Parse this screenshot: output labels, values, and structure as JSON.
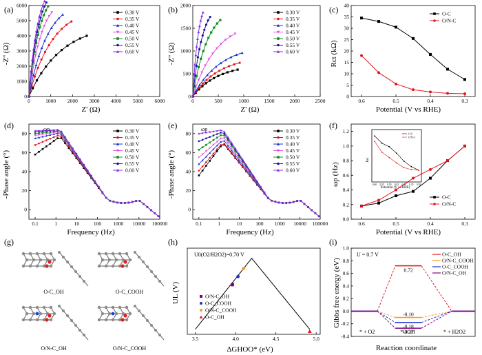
{
  "panels": {
    "a": {
      "label": "(a)",
      "xlabel": "Z' (Ω)",
      "ylabel": "-Z'' (Ω)"
    },
    "b": {
      "label": "(b)",
      "xlabel": "Z' (Ω)",
      "ylabel": "-Z'' (Ω)"
    },
    "c": {
      "label": "(c)",
      "xlabel": "Potential (V vs RHE)",
      "ylabel": "Rct (kΩ)"
    },
    "d": {
      "label": "(d)",
      "xlabel": "Frequency (Hz)",
      "ylabel": "-Phase angle (°)",
      "annotation": "ωp"
    },
    "e": {
      "label": "(e)",
      "xlabel": "Frequency (Hz)",
      "ylabel": "-Phase angle (°)",
      "annotation": "ωp"
    },
    "f": {
      "label": "(f)",
      "xlabel": "Potential (V vs RHE)",
      "ylabel": "ωp (Hz)",
      "inset_xlabel": "Potential (V vs RHE)",
      "inset_ylabel": "Rct"
    },
    "g": {
      "label": "(g)",
      "structures": [
        "O-C_OH",
        "O-C_COOH",
        "O/N-C_OH",
        "O/N-C_COOH"
      ]
    },
    "h": {
      "label": "(h)",
      "xlabel": "ΔGHOO* (eV)",
      "ylabel": "UL (V)",
      "annotation": "U0(O2/H2O2)=0.70 V"
    },
    "i": {
      "label": "(i)",
      "xlabel": "Reaction coordinate",
      "ylabel": "Gibbs free energy (eV)",
      "annotation": "U = 0.7 V",
      "states": [
        "* + O2",
        "*OOH",
        "* + H2O2"
      ]
    }
  },
  "colors": {
    "0.30 V": "#000000",
    "0.35 V": "#e8141c",
    "0.40 V": "#1a2fd6",
    "0.45 V": "#e84ce0",
    "0.50 V": "#148c1c",
    "0.55 V": "#1515a0",
    "0.60 V": "#8a2be2",
    "O-C": "#000000",
    "O/N-C": "#e8141c",
    "O-C_OH": "#e8141c",
    "O/N-C_COOH": "#ff9a1f",
    "O-C_COOH": "#1a2fd6",
    "O/N-C_OH": "#800080"
  },
  "chart_data": [
    {
      "panel": "a",
      "type": "scatter",
      "xlim": [
        0,
        6000
      ],
      "ylim": [
        0,
        6000
      ],
      "xticks": [
        0,
        1000,
        2000,
        3000,
        4000,
        5000,
        6000
      ],
      "yticks": [
        0,
        1000,
        2000,
        3000,
        4000,
        5000,
        6000
      ],
      "legend_position": "top-right",
      "series": [
        {
          "name": "0.30 V",
          "endpoint": [
            2650,
            4000
          ]
        },
        {
          "name": "0.35 V",
          "endpoint": [
            1950,
            4950
          ]
        },
        {
          "name": "0.40 V",
          "endpoint": [
            1550,
            5400
          ]
        },
        {
          "name": "0.45 V",
          "endpoint": [
            1050,
            5550
          ]
        },
        {
          "name": "0.50 V",
          "endpoint": [
            880,
            5950
          ]
        },
        {
          "name": "0.55 V",
          "endpoint": [
            800,
            6200
          ]
        },
        {
          "name": "0.60 V",
          "endpoint": [
            720,
            6300
          ]
        }
      ]
    },
    {
      "panel": "b",
      "type": "scatter",
      "xlim": [
        0,
        2500
      ],
      "ylim": [
        0,
        2000
      ],
      "xticks": [
        0,
        500,
        1000,
        1500,
        2000,
        2500
      ],
      "yticks": [
        0,
        500,
        1000,
        1500,
        2000
      ],
      "legend_position": "top-right",
      "series": [
        {
          "name": "0.30 V",
          "endpoint": [
            880,
            590
          ]
        },
        {
          "name": "0.35 V",
          "endpoint": [
            920,
            740
          ]
        },
        {
          "name": "0.40 V",
          "endpoint": [
            970,
            960
          ]
        },
        {
          "name": "0.45 V",
          "endpoint": [
            830,
            1380
          ]
        },
        {
          "name": "0.50 V",
          "endpoint": [
            540,
            1680
          ]
        },
        {
          "name": "0.55 V",
          "endpoint": [
            340,
            1750
          ]
        },
        {
          "name": "0.60 V",
          "endpoint": [
            200,
            1850
          ]
        }
      ]
    },
    {
      "panel": "c",
      "type": "line",
      "x": [
        0.6,
        0.55,
        0.5,
        0.45,
        0.4,
        0.35,
        0.3
      ],
      "xlim": [
        0.63,
        0.27
      ],
      "ylim": [
        0,
        40
      ],
      "xticks": [
        0.6,
        0.5,
        0.4,
        0.3
      ],
      "yticks": [
        0,
        5,
        10,
        15,
        20,
        25,
        30,
        35,
        40
      ],
      "legend_position": "top-right",
      "series": [
        {
          "name": "O-C",
          "values": [
            34.5,
            33,
            30.5,
            25.5,
            18.5,
            12,
            7.5
          ]
        },
        {
          "name": "O/N-C",
          "values": [
            18,
            10.5,
            5.5,
            3,
            2,
            1.4,
            1.2
          ]
        }
      ]
    },
    {
      "panel": "d",
      "type": "line",
      "xscale": "log",
      "xlim": [
        0.05,
        100000
      ],
      "ylim": [
        -10,
        90
      ],
      "xticks": [
        0.1,
        1,
        10,
        100,
        1000,
        10000,
        100000
      ],
      "xticklabels": [
        "0.1",
        "1",
        "10",
        "100",
        "1000",
        "10000",
        "100000"
      ],
      "yticks": [
        0,
        20,
        40,
        60,
        80
      ],
      "legend_position": "top-right",
      "series": [
        {
          "name": "0.30 V",
          "peak": 77,
          "low": 58
        },
        {
          "name": "0.35 V",
          "peak": 79,
          "low": 68
        },
        {
          "name": "0.40 V",
          "peak": 81,
          "low": 75
        },
        {
          "name": "0.45 V",
          "peak": 82,
          "low": 78
        },
        {
          "name": "0.50 V",
          "peak": 83,
          "low": 80
        },
        {
          "name": "0.55 V",
          "peak": 84,
          "low": 82
        },
        {
          "name": "0.60 V",
          "peak": 84,
          "low": 83
        }
      ]
    },
    {
      "panel": "e",
      "type": "line",
      "xscale": "log",
      "xlim": [
        0.05,
        100000
      ],
      "ylim": [
        -10,
        90
      ],
      "xticks": [
        0.1,
        1,
        10,
        100,
        1000,
        10000,
        100000
      ],
      "xticklabels": [
        "0.1",
        "1",
        "10",
        "100",
        "1000",
        "10000",
        "100000"
      ],
      "yticks": [
        0,
        20,
        40,
        60,
        80
      ],
      "legend_position": "top-right",
      "series": [
        {
          "name": "0.30 V",
          "peak": 70,
          "low": 36
        },
        {
          "name": "0.35 V",
          "peak": 71,
          "low": 41
        },
        {
          "name": "0.40 V",
          "peak": 74,
          "low": 48
        },
        {
          "name": "0.45 V",
          "peak": 77,
          "low": 55
        },
        {
          "name": "0.50 V",
          "peak": 80,
          "low": 63
        },
        {
          "name": "0.55 V",
          "peak": 82,
          "low": 72
        },
        {
          "name": "0.60 V",
          "peak": 84,
          "low": 80
        }
      ]
    },
    {
      "panel": "f",
      "type": "line",
      "x": [
        0.6,
        0.55,
        0.5,
        0.45,
        0.4,
        0.35,
        0.3
      ],
      "xlim": [
        0.63,
        0.27
      ],
      "ylim": [
        0,
        1.3
      ],
      "xticks": [
        0.6,
        0.5,
        0.4,
        0.3
      ],
      "yticks": [
        0.0,
        0.2,
        0.4,
        0.6,
        0.8,
        1.0,
        1.2
      ],
      "legend_position": "bottom-right",
      "series": [
        {
          "name": "O-C",
          "values": [
            0.18,
            0.22,
            0.32,
            0.38,
            0.56,
            0.8,
            1.0
          ]
        },
        {
          "name": "O/N-C",
          "values": [
            0.18,
            0.26,
            0.4,
            0.56,
            0.68,
            0.8,
            1.0
          ]
        }
      ],
      "inset": {
        "xticklabels": [
          "0.60",
          "0.55",
          "0.50",
          "0.45",
          "0.40",
          "0.35",
          "0.30"
        ],
        "series": [
          {
            "name": "O-C",
            "values": [
              1.2,
              1.0,
              0.9,
              0.72,
              0.5,
              0.35,
              0.25
            ]
          },
          {
            "name": "O/N-C",
            "values": [
              1.05,
              0.75,
              0.6,
              0.45,
              0.32,
              0.27,
              0.25
            ]
          }
        ]
      }
    },
    {
      "panel": "h",
      "type": "scatter",
      "xlim": [
        3.4,
        5.05
      ],
      "ylim": [
        -0.05,
        0.8
      ],
      "xticks": [
        3.5,
        4.0,
        4.5,
        5.0
      ],
      "legend_position": "bottom-left",
      "volcano": [
        [
          3.5,
          0.0
        ],
        [
          4.2,
          0.7
        ],
        [
          4.92,
          0.0
        ]
      ],
      "series": [
        {
          "name": "O/N-C_OH",
          "x": 3.96,
          "y": 0.44,
          "marker": "square"
        },
        {
          "name": "O-C_COOH",
          "x": 4.03,
          "y": 0.52,
          "marker": "circle"
        },
        {
          "name": "O/N-C_COOH",
          "x": 4.1,
          "y": 0.6,
          "marker": "circle"
        },
        {
          "name": "O-C_OH",
          "x": 4.92,
          "y": -0.02,
          "marker": "triangle"
        }
      ]
    },
    {
      "panel": "i",
      "type": "line",
      "ylim": [
        -0.4,
        1.0
      ],
      "yticks": [
        -0.4,
        -0.2,
        0.0,
        0.2,
        0.4,
        0.6,
        0.8,
        1.0
      ],
      "legend_position": "top-right",
      "series": [
        {
          "name": "O-C_OH",
          "values": [
            0,
            0.72,
            0
          ],
          "label": "0.72"
        },
        {
          "name": "O/N-C_COOH",
          "values": [
            0,
            -0.1,
            0
          ],
          "label": "-0.10"
        },
        {
          "name": "O-C_COOH",
          "values": [
            0,
            -0.18,
            0
          ],
          "label": "-0.18"
        },
        {
          "name": "O/N-C_OH",
          "values": [
            0,
            -0.27,
            0
          ],
          "label": "-0.27"
        }
      ]
    }
  ]
}
